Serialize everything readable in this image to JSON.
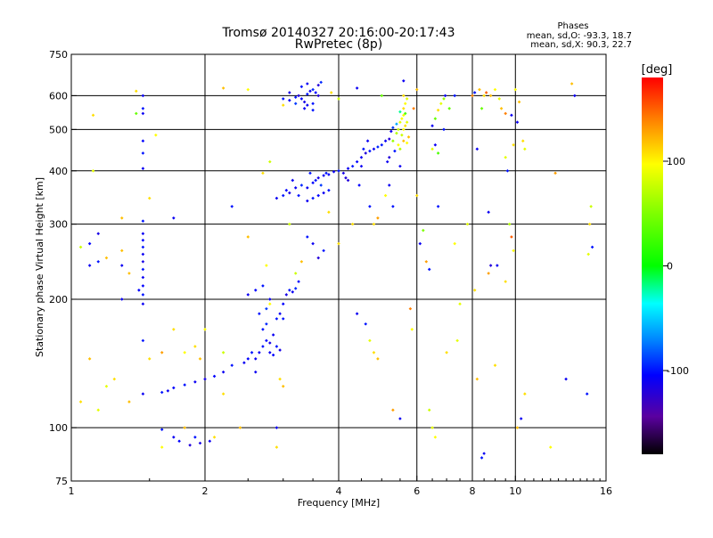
{
  "chart_data": {
    "type": "scatter",
    "title": "Tromsø 20140327 20:16:00-20:17:43",
    "subtitle": "RwPretec (8p)",
    "xlabel": "Frequency [MHz]",
    "ylabel": "Stationary phase Virtual Height [km]",
    "x_scale": "log2",
    "y_scale": "log",
    "xlim": [
      1,
      16
    ],
    "ylim": [
      75,
      750
    ],
    "x_ticks": [
      1,
      2,
      4,
      6,
      8,
      10,
      16
    ],
    "y_ticks": [
      75,
      100,
      200,
      300,
      400,
      500,
      600,
      750
    ],
    "grid": true,
    "phase_box": {
      "title": "Phases",
      "line1": "mean, sd,O: -93.3, 18.7",
      "line2": "mean, sd,X:  90.3, 22.7"
    },
    "colorbar": {
      "label": "[deg]",
      "range": [
        -180,
        180
      ],
      "ticks": [
        100,
        0,
        -100
      ],
      "tick_labels": [
        "100",
        "0",
        "-100"
      ]
    },
    "points": [
      [
        3.1,
        585,
        -110
      ],
      [
        3.2,
        595,
        -100
      ],
      [
        3.25,
        600,
        -120
      ],
      [
        3.3,
        590,
        -105
      ],
      [
        3.35,
        580,
        -115
      ],
      [
        3.4,
        605,
        -100
      ],
      [
        3.45,
        615,
        -110
      ],
      [
        3.5,
        620,
        -95
      ],
      [
        3.3,
        630,
        -100
      ],
      [
        3.4,
        640,
        -110
      ],
      [
        3.55,
        610,
        -105
      ],
      [
        3.6,
        600,
        -120
      ],
      [
        3.5,
        575,
        -100
      ],
      [
        3.4,
        570,
        -110
      ],
      [
        3.2,
        575,
        -90
      ],
      [
        3.0,
        590,
        -100
      ],
      [
        3.1,
        610,
        -115
      ],
      [
        3.6,
        635,
        -120
      ],
      [
        3.65,
        645,
        -95
      ],
      [
        3.35,
        560,
        -110
      ],
      [
        3.5,
        555,
        -100
      ],
      [
        2.9,
        345,
        -110
      ],
      [
        3.0,
        350,
        -100
      ],
      [
        3.05,
        360,
        -105
      ],
      [
        3.1,
        355,
        -115
      ],
      [
        3.2,
        365,
        -110
      ],
      [
        3.25,
        350,
        -100
      ],
      [
        3.3,
        370,
        -95
      ],
      [
        3.4,
        365,
        -110
      ],
      [
        3.5,
        375,
        -105
      ],
      [
        3.55,
        380,
        -100
      ],
      [
        3.6,
        385,
        -115
      ],
      [
        3.7,
        390,
        -110
      ],
      [
        3.75,
        395,
        -100
      ],
      [
        3.8,
        392,
        -105
      ],
      [
        3.9,
        398,
        -110
      ],
      [
        4.0,
        400,
        -100
      ],
      [
        4.1,
        395,
        -115
      ],
      [
        4.2,
        405,
        -110
      ],
      [
        4.3,
        410,
        -100
      ],
      [
        4.4,
        420,
        -105
      ],
      [
        4.5,
        430,
        -110
      ],
      [
        4.6,
        440,
        -120
      ],
      [
        4.7,
        445,
        -100
      ],
      [
        4.8,
        450,
        -110
      ],
      [
        4.9,
        455,
        -95
      ],
      [
        5.0,
        460,
        -100
      ],
      [
        5.1,
        470,
        -110
      ],
      [
        5.2,
        475,
        -120
      ],
      [
        3.4,
        340,
        -110
      ],
      [
        3.5,
        345,
        -100
      ],
      [
        3.6,
        350,
        -105
      ],
      [
        3.7,
        355,
        -110
      ],
      [
        3.8,
        360,
        -100
      ],
      [
        3.15,
        380,
        -110
      ],
      [
        3.45,
        395,
        -100
      ],
      [
        3.65,
        370,
        -90
      ],
      [
        4.15,
        385,
        -120
      ],
      [
        4.45,
        370,
        -105
      ],
      [
        4.55,
        450,
        -100
      ],
      [
        4.65,
        470,
        -110
      ],
      [
        5.3,
        470,
        60
      ],
      [
        5.4,
        490,
        70
      ],
      [
        5.45,
        500,
        80
      ],
      [
        5.5,
        520,
        90
      ],
      [
        5.55,
        530,
        100
      ],
      [
        5.6,
        540,
        95
      ],
      [
        5.6,
        560,
        110
      ],
      [
        5.65,
        575,
        100
      ],
      [
        5.7,
        590,
        90
      ],
      [
        5.55,
        485,
        80
      ],
      [
        5.6,
        500,
        100
      ],
      [
        5.65,
        510,
        110
      ],
      [
        5.7,
        520,
        90
      ],
      [
        5.5,
        450,
        70
      ],
      [
        5.45,
        460,
        100
      ],
      [
        5.6,
        470,
        120
      ],
      [
        5.65,
        545,
        30
      ],
      [
        5.5,
        550,
        -20
      ],
      [
        5.4,
        515,
        -60
      ],
      [
        5.3,
        505,
        -90
      ],
      [
        5.25,
        495,
        -110
      ],
      [
        5.35,
        445,
        -100
      ],
      [
        5.2,
        430,
        -120
      ],
      [
        5.15,
        420,
        -110
      ],
      [
        5.6,
        600,
        110
      ],
      [
        5.7,
        465,
        100
      ],
      [
        5.75,
        480,
        120
      ],
      [
        2.65,
        150,
        -110
      ],
      [
        2.7,
        155,
        -100
      ],
      [
        2.75,
        160,
        -105
      ],
      [
        2.8,
        158,
        -115
      ],
      [
        2.85,
        165,
        -110
      ],
      [
        2.7,
        170,
        -100
      ],
      [
        2.75,
        175,
        -95
      ],
      [
        2.8,
        150,
        -110
      ],
      [
        2.85,
        148,
        -105
      ],
      [
        2.9,
        155,
        -100
      ],
      [
        2.95,
        152,
        -115
      ],
      [
        2.6,
        145,
        -110
      ],
      [
        2.55,
        150,
        -100
      ],
      [
        2.5,
        145,
        -105
      ],
      [
        2.45,
        142,
        -110
      ],
      [
        2.9,
        180,
        -100
      ],
      [
        2.95,
        185,
        -110
      ],
      [
        3.0,
        195,
        -105
      ],
      [
        3.05,
        205,
        -115
      ],
      [
        3.1,
        210,
        -100
      ],
      [
        3.15,
        208,
        -110
      ],
      [
        3.2,
        212,
        -95
      ],
      [
        3.25,
        220,
        -105
      ],
      [
        2.8,
        200,
        -110
      ],
      [
        2.7,
        215,
        -100
      ],
      [
        2.6,
        210,
        -105
      ],
      [
        2.5,
        205,
        -110
      ],
      [
        2.65,
        185,
        -100
      ],
      [
        2.75,
        190,
        -90
      ],
      [
        2.3,
        140,
        -100
      ],
      [
        2.2,
        135,
        -110
      ],
      [
        2.1,
        132,
        -105
      ],
      [
        2.0,
        130,
        -115
      ],
      [
        1.9,
        128,
        -110
      ],
      [
        1.8,
        126,
        -100
      ],
      [
        1.7,
        124,
        -105
      ],
      [
        1.65,
        122,
        -110
      ],
      [
        1.6,
        121,
        -100
      ],
      [
        1.45,
        195,
        -110
      ],
      [
        1.45,
        205,
        -100
      ],
      [
        1.45,
        215,
        -105
      ],
      [
        1.45,
        225,
        -110
      ],
      [
        1.45,
        235,
        -100
      ],
      [
        1.45,
        245,
        -115
      ],
      [
        1.45,
        255,
        -110
      ],
      [
        1.45,
        265,
        -100
      ],
      [
        1.45,
        275,
        -105
      ],
      [
        1.45,
        285,
        -110
      ],
      [
        1.45,
        305,
        -100
      ],
      [
        1.45,
        405,
        -110
      ],
      [
        1.45,
        440,
        -100
      ],
      [
        1.45,
        470,
        -105
      ],
      [
        1.45,
        545,
        -110
      ],
      [
        1.45,
        560,
        -100
      ],
      [
        1.45,
        600,
        -110
      ],
      [
        1.4,
        545,
        40
      ],
      [
        1.4,
        615,
        110
      ],
      [
        1.45,
        120,
        -110
      ],
      [
        1.45,
        160,
        -100
      ],
      [
        1.42,
        210,
        -105
      ],
      [
        1.6,
        99,
        -100
      ],
      [
        1.7,
        95,
        -110
      ],
      [
        1.75,
        93,
        -105
      ],
      [
        1.9,
        95,
        -100
      ],
      [
        1.95,
        92,
        -115
      ],
      [
        2.05,
        93,
        -110
      ],
      [
        1.85,
        91,
        -120
      ],
      [
        1.1,
        240,
        -110
      ],
      [
        1.15,
        245,
        -100
      ],
      [
        1.2,
        250,
        120
      ],
      [
        1.1,
        270,
        -105
      ],
      [
        1.15,
        285,
        -115
      ],
      [
        1.3,
        260,
        120
      ],
      [
        1.12,
        400,
        90
      ],
      [
        1.12,
        540,
        110
      ],
      [
        1.05,
        265,
        80
      ],
      [
        6.5,
        510,
        -110
      ],
      [
        6.6,
        530,
        40
      ],
      [
        6.7,
        555,
        110
      ],
      [
        6.8,
        575,
        90
      ],
      [
        6.9,
        590,
        60
      ],
      [
        6.95,
        600,
        -110
      ],
      [
        7.1,
        560,
        40
      ],
      [
        7.3,
        600,
        -100
      ],
      [
        6.5,
        450,
        90
      ],
      [
        6.6,
        460,
        -110
      ],
      [
        6.7,
        440,
        30
      ],
      [
        6.9,
        500,
        -100
      ],
      [
        8.0,
        600,
        140
      ],
      [
        8.1,
        610,
        -100
      ],
      [
        8.3,
        620,
        120
      ],
      [
        8.5,
        600,
        110
      ],
      [
        8.6,
        610,
        150
      ],
      [
        8.8,
        600,
        120
      ],
      [
        9.0,
        620,
        100
      ],
      [
        9.2,
        590,
        90
      ],
      [
        8.2,
        450,
        -110
      ],
      [
        8.4,
        560,
        40
      ],
      [
        9.3,
        560,
        120
      ],
      [
        9.5,
        545,
        140
      ],
      [
        9.8,
        540,
        -110
      ],
      [
        9.9,
        460,
        110
      ],
      [
        9.5,
        430,
        90
      ],
      [
        9.6,
        400,
        -100
      ],
      [
        9.7,
        300,
        70
      ],
      [
        9.8,
        280,
        150
      ],
      [
        9.9,
        260,
        100
      ],
      [
        9.1,
        240,
        -110
      ],
      [
        8.8,
        240,
        -120
      ],
      [
        8.7,
        230,
        130
      ],
      [
        9.5,
        220,
        110
      ],
      [
        8.7,
        320,
        -110
      ],
      [
        6.0,
        350,
        110
      ],
      [
        6.1,
        270,
        -110
      ],
      [
        6.3,
        245,
        130
      ],
      [
        6.4,
        235,
        -100
      ],
      [
        6.2,
        290,
        50
      ],
      [
        6.7,
        330,
        -100
      ],
      [
        7.3,
        270,
        100
      ],
      [
        7.8,
        300,
        90
      ],
      [
        8.1,
        210,
        110
      ],
      [
        7.5,
        195,
        90
      ],
      [
        10.0,
        620,
        100
      ],
      [
        10.1,
        520,
        -110
      ],
      [
        10.2,
        580,
        120
      ],
      [
        10.4,
        470,
        110
      ],
      [
        10.5,
        450,
        90
      ],
      [
        13.4,
        640,
        120
      ],
      [
        13.6,
        600,
        -110
      ],
      [
        14.8,
        330,
        80
      ],
      [
        14.7,
        300,
        110
      ],
      [
        14.9,
        265,
        -100
      ],
      [
        14.6,
        255,
        90
      ],
      [
        12.3,
        395,
        130
      ],
      [
        12.0,
        90,
        100
      ],
      [
        13.0,
        130,
        -110
      ],
      [
        14.5,
        120,
        -100
      ],
      [
        10.5,
        120,
        110
      ],
      [
        10.3,
        105,
        -110
      ],
      [
        10.1,
        100,
        120
      ],
      [
        9.0,
        140,
        110
      ],
      [
        8.2,
        130,
        120
      ],
      [
        8.5,
        87,
        -110
      ],
      [
        8.4,
        85,
        -100
      ],
      [
        4.4,
        185,
        -110
      ],
      [
        4.6,
        175,
        -100
      ],
      [
        4.7,
        160,
        90
      ],
      [
        4.8,
        150,
        110
      ],
      [
        4.9,
        145,
        120
      ],
      [
        5.3,
        110,
        130
      ],
      [
        5.5,
        105,
        -110
      ],
      [
        5.8,
        190,
        140
      ],
      [
        5.85,
        170,
        100
      ],
      [
        6.5,
        100,
        90
      ],
      [
        6.4,
        110,
        80
      ],
      [
        7.0,
        150,
        110
      ],
      [
        7.4,
        160,
        90
      ],
      [
        6.6,
        95,
        100
      ],
      [
        2.9,
        100,
        -110
      ],
      [
        2.9,
        90,
        110
      ],
      [
        3.0,
        180,
        -100
      ],
      [
        2.8,
        195,
        100
      ],
      [
        2.75,
        240,
        100
      ],
      [
        3.2,
        230,
        80
      ],
      [
        3.3,
        245,
        120
      ],
      [
        3.5,
        270,
        -110
      ],
      [
        3.6,
        250,
        -120
      ],
      [
        3.4,
        280,
        -100
      ],
      [
        3.1,
        300,
        80
      ],
      [
        3.8,
        320,
        110
      ],
      [
        3.7,
        260,
        -100
      ],
      [
        1.2,
        125,
        90
      ],
      [
        1.25,
        130,
        110
      ],
      [
        1.35,
        115,
        120
      ],
      [
        1.5,
        145,
        110
      ],
      [
        1.6,
        150,
        130
      ],
      [
        1.8,
        150,
        100
      ],
      [
        1.9,
        155,
        110
      ],
      [
        2.2,
        150,
        80
      ],
      [
        1.95,
        145,
        120
      ],
      [
        1.55,
        485,
        100
      ],
      [
        1.5,
        345,
        110
      ],
      [
        1.7,
        310,
        -110
      ],
      [
        2.3,
        330,
        -100
      ],
      [
        2.7,
        395,
        110
      ],
      [
        2.5,
        280,
        120
      ],
      [
        2.8,
        420,
        80
      ],
      [
        3.0,
        570,
        110
      ],
      [
        2.5,
        620,
        100
      ],
      [
        2.2,
        625,
        120
      ],
      [
        4.4,
        625,
        -110
      ],
      [
        4.0,
        590,
        80
      ],
      [
        3.85,
        610,
        110
      ],
      [
        5.0,
        600,
        40
      ],
      [
        5.6,
        650,
        -110
      ],
      [
        5.9,
        560,
        140
      ],
      [
        6.0,
        620,
        120
      ],
      [
        4.7,
        330,
        -100
      ],
      [
        4.8,
        300,
        110
      ],
      [
        4.9,
        310,
        130
      ],
      [
        5.1,
        350,
        100
      ],
      [
        5.2,
        370,
        -110
      ],
      [
        4.3,
        300,
        110
      ],
      [
        4.0,
        270,
        110
      ],
      [
        4.5,
        410,
        -110
      ],
      [
        4.2,
        380,
        -120
      ],
      [
        5.3,
        330,
        -100
      ],
      [
        5.5,
        410,
        -110
      ],
      [
        1.3,
        310,
        120
      ],
      [
        1.3,
        240,
        -110
      ],
      [
        1.35,
        230,
        120
      ],
      [
        1.3,
        200,
        -110
      ],
      [
        1.7,
        170,
        110
      ],
      [
        2.0,
        170,
        100
      ],
      [
        2.2,
        120,
        110
      ],
      [
        2.4,
        100,
        120
      ],
      [
        1.1,
        145,
        120
      ],
      [
        1.15,
        110,
        90
      ],
      [
        1.05,
        115,
        110
      ],
      [
        1.6,
        90,
        100
      ],
      [
        1.8,
        100,
        120
      ],
      [
        2.1,
        95,
        110
      ],
      [
        2.6,
        135,
        -110
      ],
      [
        2.95,
        130,
        110
      ],
      [
        3.0,
        125,
        120
      ]
    ]
  }
}
